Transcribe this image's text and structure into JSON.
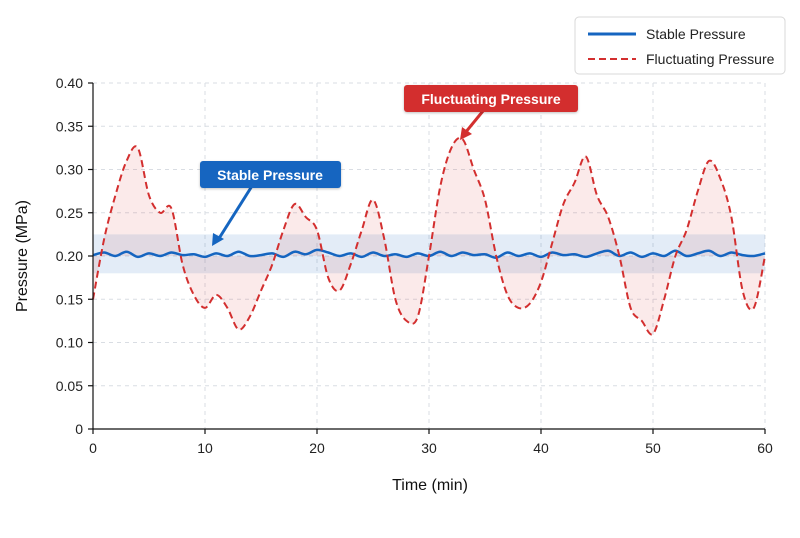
{
  "chart_data": {
    "type": "line",
    "title": "",
    "xlabel": "Time (min)",
    "ylabel": "Pressure (MPa)",
    "xlim": [
      0,
      60
    ],
    "ylim": [
      0,
      0.4
    ],
    "x_ticks": [
      "0",
      "10",
      "20",
      "30",
      "40",
      "50",
      "60"
    ],
    "y_ticks": [
      "0",
      "0.05",
      "0.10",
      "0.15",
      "0.20",
      "0.25",
      "0.30",
      "0.35",
      "0.40"
    ],
    "grid": true,
    "legend_position": "top-right",
    "series": [
      {
        "name": "Stable Pressure",
        "color": "#1565C0",
        "style": "solid",
        "band": [
          0.18,
          0.225
        ],
        "x": [
          0,
          1,
          2,
          3,
          4,
          5,
          6,
          7,
          8,
          9,
          10,
          11,
          12,
          13,
          14,
          15,
          16,
          17,
          18,
          19,
          20,
          21,
          22,
          23,
          24,
          25,
          26,
          27,
          28,
          29,
          30,
          31,
          32,
          33,
          34,
          35,
          36,
          37,
          38,
          39,
          40,
          41,
          42,
          43,
          44,
          45,
          46,
          47,
          48,
          49,
          50,
          51,
          52,
          53,
          54,
          55,
          56,
          57,
          58,
          59,
          60
        ],
        "y": [
          0.201,
          0.204,
          0.2,
          0.205,
          0.199,
          0.203,
          0.2,
          0.204,
          0.201,
          0.202,
          0.199,
          0.203,
          0.2,
          0.205,
          0.2,
          0.201,
          0.203,
          0.199,
          0.205,
          0.202,
          0.207,
          0.204,
          0.2,
          0.203,
          0.199,
          0.204,
          0.2,
          0.202,
          0.199,
          0.203,
          0.2,
          0.205,
          0.2,
          0.204,
          0.201,
          0.202,
          0.198,
          0.204,
          0.2,
          0.203,
          0.199,
          0.204,
          0.201,
          0.202,
          0.199,
          0.203,
          0.206,
          0.2,
          0.204,
          0.199,
          0.203,
          0.2,
          0.206,
          0.2,
          0.203,
          0.206,
          0.2,
          0.204,
          0.201,
          0.2,
          0.203
        ]
      },
      {
        "name": "Fluctuating Pressure",
        "color": "#D32F2F",
        "style": "dashed",
        "x": [
          0,
          1,
          2,
          3,
          4,
          5,
          6,
          7,
          8,
          9,
          10,
          11,
          12,
          13,
          14,
          15,
          16,
          17,
          18,
          19,
          20,
          21,
          22,
          23,
          24,
          25,
          26,
          27,
          28,
          29,
          30,
          31,
          32,
          33,
          34,
          35,
          36,
          37,
          38,
          39,
          40,
          41,
          42,
          43,
          44,
          45,
          46,
          47,
          48,
          49,
          50,
          51,
          52,
          53,
          54,
          55,
          56,
          57,
          58,
          59,
          60
        ],
        "y": [
          0.15,
          0.22,
          0.27,
          0.31,
          0.325,
          0.27,
          0.25,
          0.255,
          0.19,
          0.155,
          0.14,
          0.155,
          0.14,
          0.115,
          0.13,
          0.16,
          0.19,
          0.23,
          0.26,
          0.245,
          0.23,
          0.175,
          0.16,
          0.19,
          0.23,
          0.265,
          0.22,
          0.15,
          0.125,
          0.13,
          0.2,
          0.28,
          0.325,
          0.335,
          0.3,
          0.265,
          0.2,
          0.155,
          0.14,
          0.145,
          0.17,
          0.215,
          0.26,
          0.285,
          0.315,
          0.27,
          0.245,
          0.2,
          0.14,
          0.125,
          0.11,
          0.15,
          0.2,
          0.23,
          0.275,
          0.31,
          0.29,
          0.245,
          0.16,
          0.14,
          0.2
        ]
      }
    ],
    "annotations": [
      {
        "text": "Stable Pressure",
        "x": 11,
        "y": 0.204
      },
      {
        "text": "Fluctuating Pressure",
        "x": 32.5,
        "y": 0.335
      }
    ]
  }
}
